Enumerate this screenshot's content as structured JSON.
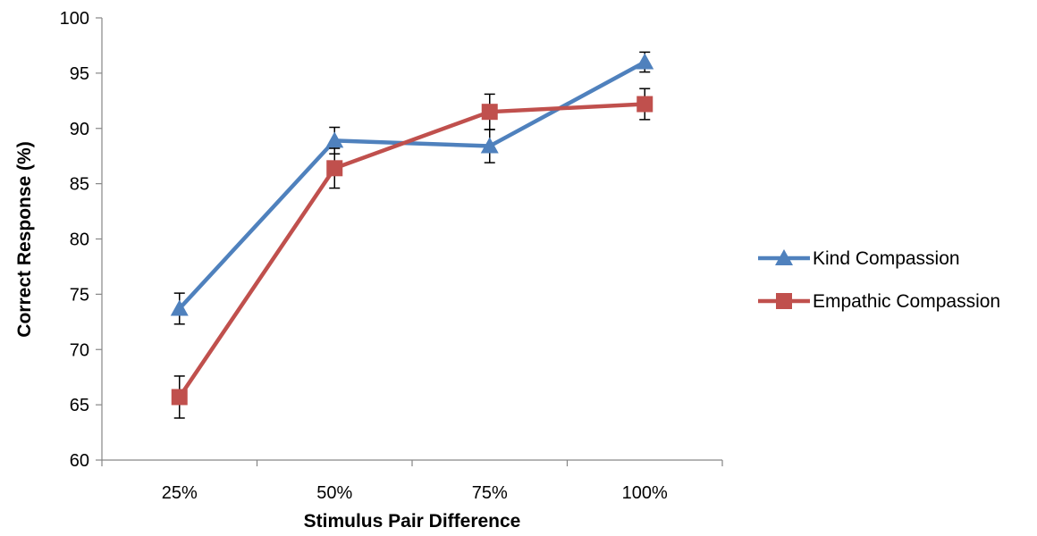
{
  "chart_data": {
    "type": "line",
    "title": "",
    "xlabel": "Stimulus Pair Difference",
    "ylabel": "Correct Response (%)",
    "categories": [
      "25%",
      "50%",
      "75%",
      "100%"
    ],
    "ylim": [
      60,
      100
    ],
    "yticks": [
      60,
      65,
      70,
      75,
      80,
      85,
      90,
      95,
      100
    ],
    "grid": false,
    "legend_position": "right",
    "series": [
      {
        "name": "Kind Compassion",
        "values": [
          73.7,
          88.9,
          88.4,
          96.0
        ],
        "errors": [
          1.4,
          1.2,
          1.5,
          0.9
        ],
        "color": "#4F81BD",
        "marker": "triangle"
      },
      {
        "name": "Empathic Compassion",
        "values": [
          65.7,
          86.4,
          91.5,
          92.2
        ],
        "errors": [
          1.9,
          1.8,
          1.6,
          1.4
        ],
        "color": "#C0504D",
        "marker": "square"
      }
    ]
  }
}
